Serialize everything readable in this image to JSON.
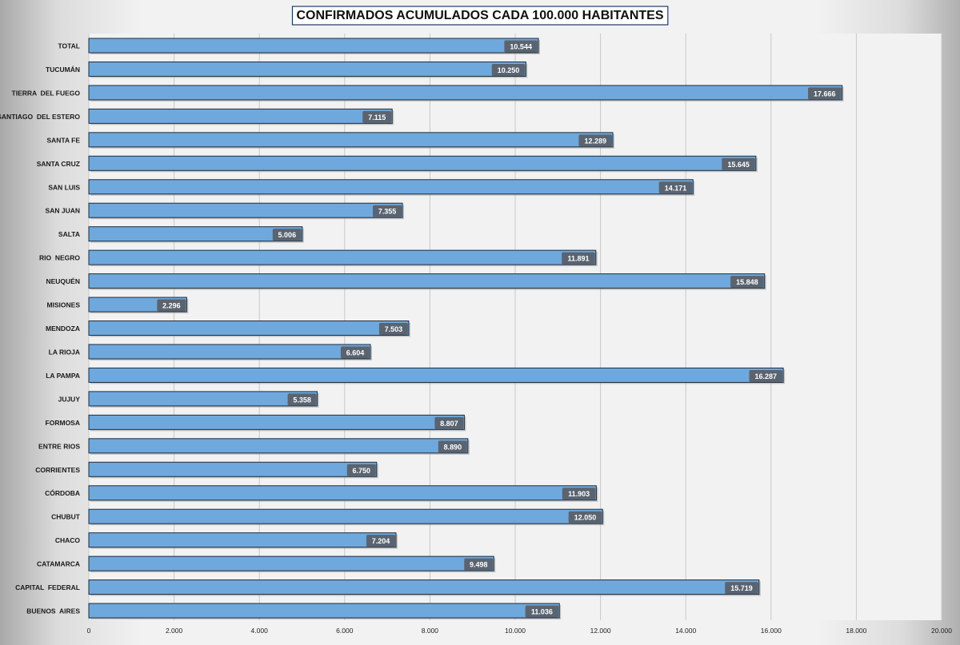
{
  "chart_data": {
    "type": "bar",
    "orientation": "horizontal",
    "title": "CONFIRMADOS ACUMULADOS CADA 100.000 HABITANTES",
    "categories": [
      "TOTAL",
      "TUCUMÁN",
      "TIERRA  DEL FUEGO",
      "SANTIAGO  DEL ESTERO",
      "SANTA FE",
      "SANTA CRUZ",
      "SAN LUIS",
      "SAN JUAN",
      "SALTA",
      "RIO  NEGRO",
      "NEUQUÉN",
      "MISIONES",
      "MENDOZA",
      "LA RIOJA",
      "LA PAMPA",
      "JUJUY",
      "FORMOSA",
      "ENTRE RIOS",
      "CORRIENTES",
      "CÓRDOBA",
      "CHUBUT",
      "CHACO",
      "CATAMARCA",
      "CAPITAL  FEDERAL",
      "BUENOS  AIRES"
    ],
    "values": [
      10544,
      10250,
      17666,
      7115,
      12289,
      15645,
      14171,
      7355,
      5006,
      11891,
      15848,
      2296,
      7503,
      6604,
      16287,
      5358,
      8807,
      8890,
      6750,
      11903,
      12050,
      7204,
      9498,
      15719,
      11036
    ],
    "value_labels": [
      "10.544",
      "10.250",
      "17.666",
      "7.115",
      "12.289",
      "15.645",
      "14.171",
      "7.355",
      "5.006",
      "11.891",
      "15.848",
      "2.296",
      "7.503",
      "6.604",
      "16.287",
      "5.358",
      "8.807",
      "8.890",
      "6.750",
      "11.903",
      "12.050",
      "7.204",
      "9.498",
      "15.719",
      "11.036"
    ],
    "xlim": [
      0,
      20000
    ],
    "xticks": [
      0,
      2000,
      4000,
      6000,
      8000,
      10000,
      12000,
      14000,
      16000,
      18000,
      20000
    ],
    "xtick_labels": [
      "0",
      "2.000",
      "4.000",
      "6.000",
      "8.000",
      "10.000",
      "12.000",
      "14.000",
      "16.000",
      "18.000",
      "20.000"
    ],
    "grid": true,
    "colors": {
      "bar_fill": "#6fa8dc",
      "bar_stroke": "#1f2d3d",
      "label_bg": "#5a6470",
      "label_text": "#ffffff",
      "grid": "#c8c8c8",
      "title_border": "#1f3864"
    }
  }
}
